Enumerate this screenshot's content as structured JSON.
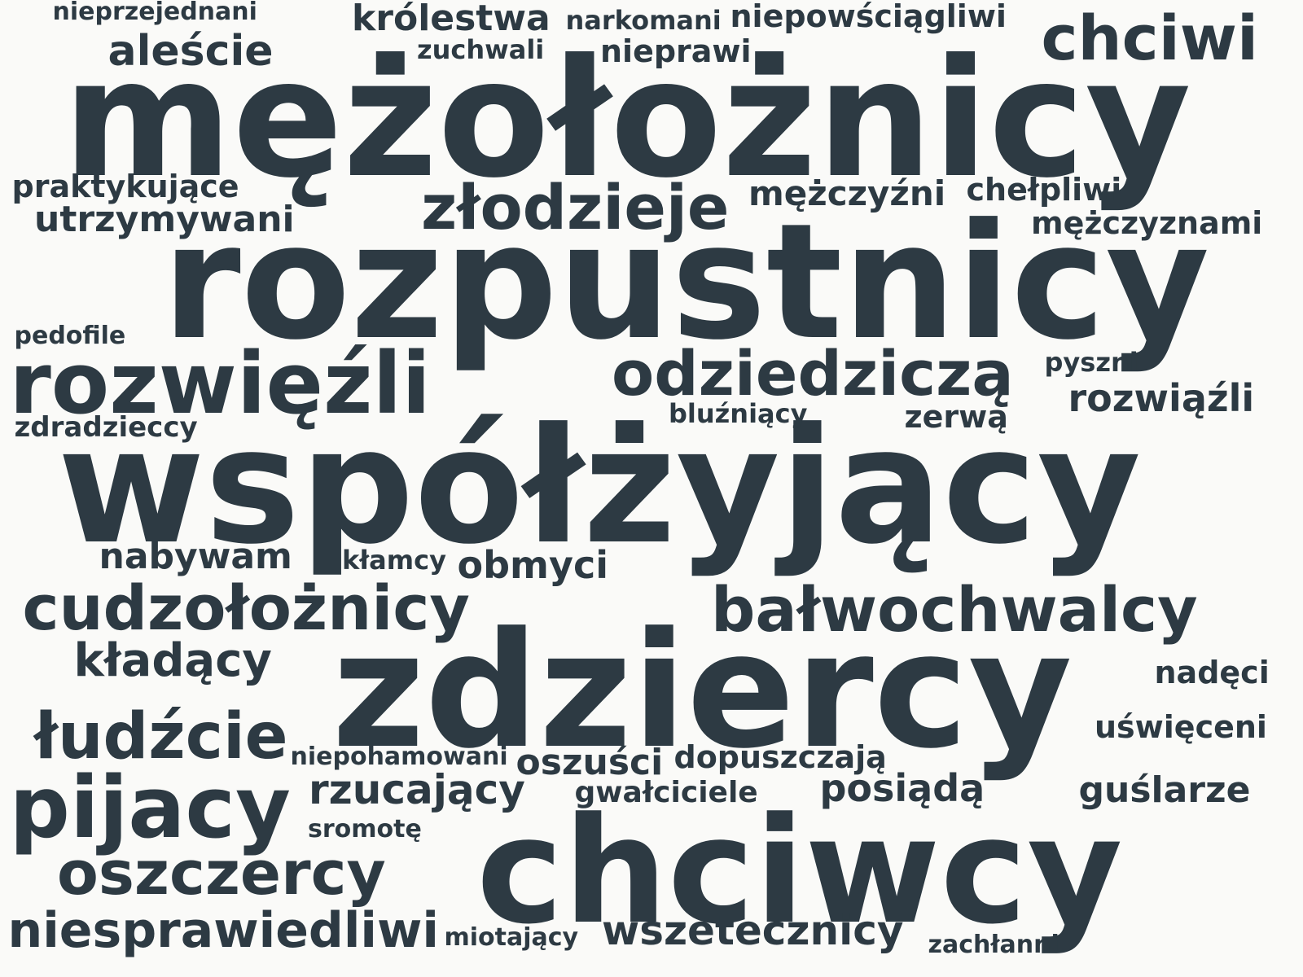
{
  "colors": {
    "background": "#fafaf8",
    "text": "#2d3a43"
  },
  "words": [
    "mężołożnicy",
    "rozpustnicy",
    "współżyjący",
    "zdziercy",
    "chciwcy",
    "rozwięźli",
    "chciwi",
    "złodzieje",
    "odziedziczą",
    "bałwochwalcy",
    "cudzołożnicy",
    "pijacy",
    "łudźcie",
    "oszczercy",
    "niesprawiedliwi",
    "wszetecznicy",
    "aleście",
    "królestwa",
    "kładący",
    "rzucający",
    "obmyci",
    "oszuści",
    "posiądą",
    "guślarze",
    "rozwiąźli",
    "nabywam",
    "utrzymywani",
    "mężczyźni",
    "niepowściągliwi",
    "nieprawi",
    "dopuszczają",
    "mężczyznami",
    "chełpliwi",
    "praktykujące",
    "zerwą",
    "uświęceni",
    "nadęci",
    "gwałciciele",
    "narkomani",
    "nieprzejednani",
    "zuchwali",
    "zdradzieccy",
    "pyszni",
    "bluźniący",
    "kłamcy",
    "pedofile",
    "sromotę",
    "niepohamowani",
    "miotający",
    "zachłanni"
  ]
}
